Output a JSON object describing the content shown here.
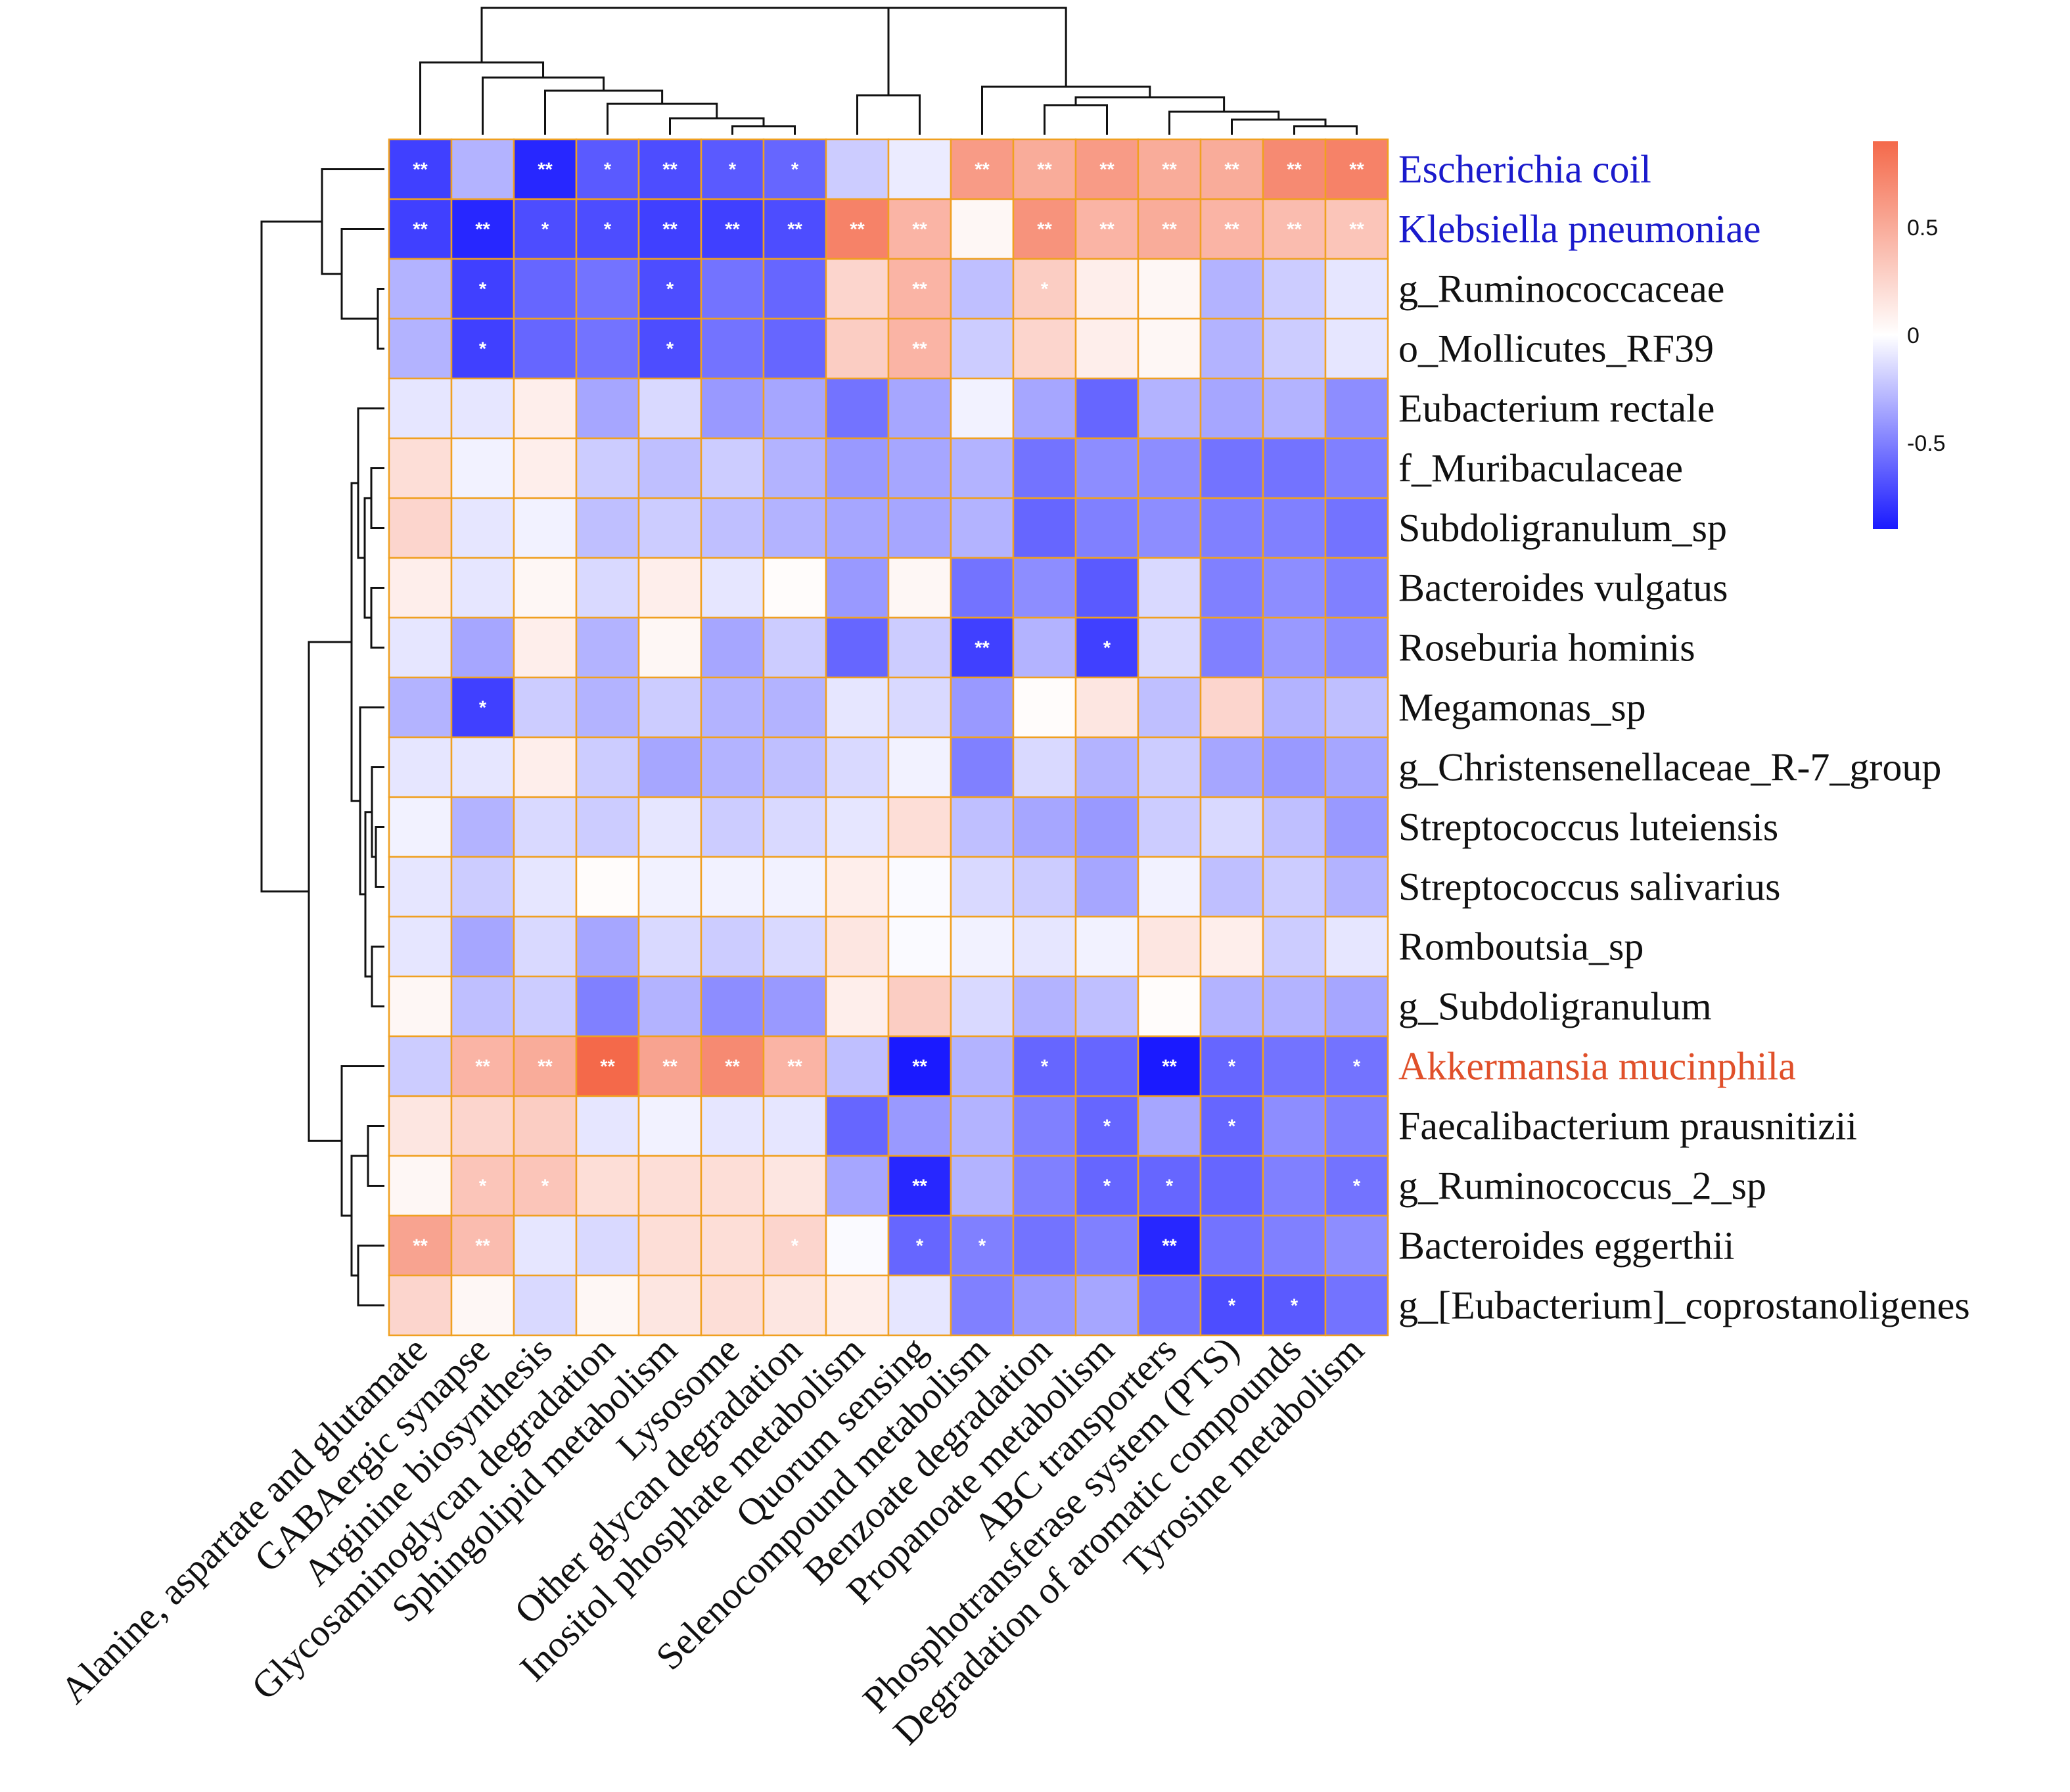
{
  "chart_data": {
    "type": "heatmap",
    "title": "",
    "rows": [
      "Escherichia coil",
      "Klebsiella pneumoniae",
      "g_Ruminococcaceae",
      "o_Mollicutes_RF39",
      "Eubacterium rectale",
      "f_Muribaculaceae",
      "Subdoligranulum_sp",
      "Bacteroides vulgatus",
      "Roseburia hominis",
      "Megamonas_sp",
      "g_Christensenellaceae_R-7_group",
      "Streptococcus luteiensis",
      "Streptococcus salivarius",
      "Romboutsia_sp",
      "g_Subdoligranulum",
      "Akkermansia mucinphila",
      "Faecalibacterium prausnitizii",
      "g_Ruminococcus_2_sp",
      "Bacteroides eggerthii",
      "g_[Eubacterium]_coprostanoligenes"
    ],
    "row_label_colors": [
      "#1a1acc",
      "#1a1acc",
      "#111111",
      "#111111",
      "#111111",
      "#111111",
      "#111111",
      "#111111",
      "#111111",
      "#111111",
      "#111111",
      "#111111",
      "#111111",
      "#111111",
      "#111111",
      "#e0502a",
      "#111111",
      "#111111",
      "#111111",
      "#111111"
    ],
    "columns": [
      "Alanine, aspartate and glutamate",
      "GABAergic synapse",
      "Arginine biosynthesis",
      "Glycosaminoglycan degradation",
      "Sphingolipid metabolism",
      "Lysosome",
      "Other glycan degradation",
      "Inositol phosphate metabolism",
      "Quorum sensing",
      "Selenocompound metabolism",
      "Benzoate degradation",
      "Propanoate metabolism",
      "ABC transporters",
      "Phosphotransferase system (PTS)",
      "Degradation of aromatic compounds",
      "Tyrosine metabolism"
    ],
    "values": [
      [
        -0.75,
        -0.3,
        -0.85,
        -0.65,
        -0.7,
        -0.65,
        -0.6,
        -0.2,
        -0.08,
        0.6,
        0.5,
        0.6,
        0.5,
        0.5,
        0.7,
        0.75
      ],
      [
        -0.75,
        -0.85,
        -0.7,
        -0.7,
        -0.75,
        -0.75,
        -0.7,
        0.75,
        0.45,
        0.05,
        0.65,
        0.45,
        0.5,
        0.45,
        0.4,
        0.35
      ],
      [
        -0.3,
        -0.75,
        -0.6,
        -0.55,
        -0.7,
        -0.55,
        -0.6,
        0.25,
        0.45,
        -0.25,
        0.3,
        0.1,
        0.05,
        -0.3,
        -0.2,
        -0.1
      ],
      [
        -0.3,
        -0.75,
        -0.6,
        -0.55,
        -0.7,
        -0.55,
        -0.6,
        0.3,
        0.45,
        -0.2,
        0.25,
        0.1,
        0.05,
        -0.3,
        -0.2,
        -0.1
      ],
      [
        -0.1,
        -0.1,
        0.1,
        -0.35,
        -0.15,
        -0.4,
        -0.35,
        -0.55,
        -0.35,
        -0.05,
        -0.35,
        -0.6,
        -0.3,
        -0.35,
        -0.3,
        -0.45
      ],
      [
        0.2,
        -0.05,
        0.1,
        -0.2,
        -0.25,
        -0.2,
        -0.3,
        -0.4,
        -0.35,
        -0.3,
        -0.55,
        -0.45,
        -0.45,
        -0.55,
        -0.55,
        -0.5
      ],
      [
        0.25,
        -0.1,
        -0.05,
        -0.25,
        -0.2,
        -0.25,
        -0.3,
        -0.35,
        -0.35,
        -0.3,
        -0.6,
        -0.5,
        -0.45,
        -0.5,
        -0.5,
        -0.55
      ],
      [
        0.1,
        -0.1,
        0.05,
        -0.15,
        0.1,
        -0.1,
        0.02,
        -0.4,
        0.05,
        -0.55,
        -0.45,
        -0.65,
        -0.15,
        -0.5,
        -0.45,
        -0.5
      ],
      [
        -0.1,
        -0.35,
        0.1,
        -0.3,
        0.05,
        -0.35,
        -0.2,
        -0.6,
        -0.2,
        -0.75,
        -0.3,
        -0.75,
        -0.15,
        -0.5,
        -0.4,
        -0.45
      ],
      [
        -0.3,
        -0.75,
        -0.2,
        -0.3,
        -0.2,
        -0.3,
        -0.3,
        -0.1,
        -0.15,
        -0.4,
        0.02,
        0.15,
        -0.25,
        0.25,
        -0.3,
        -0.25
      ],
      [
        -0.1,
        -0.1,
        0.1,
        -0.2,
        -0.35,
        -0.3,
        -0.25,
        -0.15,
        -0.05,
        -0.5,
        -0.15,
        -0.3,
        -0.2,
        -0.35,
        -0.4,
        -0.35
      ],
      [
        -0.05,
        -0.3,
        -0.15,
        -0.2,
        -0.1,
        -0.2,
        -0.15,
        -0.1,
        0.2,
        -0.25,
        -0.35,
        -0.4,
        -0.2,
        -0.15,
        -0.25,
        -0.4
      ],
      [
        -0.1,
        -0.2,
        -0.1,
        0.02,
        -0.05,
        -0.05,
        -0.05,
        0.1,
        -0.02,
        -0.15,
        -0.2,
        -0.35,
        -0.05,
        -0.25,
        -0.2,
        -0.3
      ],
      [
        -0.1,
        -0.35,
        -0.15,
        -0.35,
        -0.15,
        -0.2,
        -0.15,
        0.15,
        -0.02,
        -0.05,
        -0.1,
        -0.05,
        0.15,
        0.1,
        -0.2,
        -0.1
      ],
      [
        0.05,
        -0.25,
        -0.2,
        -0.5,
        -0.3,
        -0.45,
        -0.4,
        0.1,
        0.3,
        -0.15,
        -0.3,
        -0.25,
        0.02,
        -0.3,
        -0.3,
        -0.35
      ],
      [
        -0.2,
        0.45,
        0.5,
        0.9,
        0.55,
        0.7,
        0.45,
        -0.25,
        -0.9,
        -0.3,
        -0.6,
        -0.6,
        -0.9,
        -0.6,
        -0.55,
        -0.55
      ],
      [
        0.15,
        0.25,
        0.3,
        -0.1,
        -0.05,
        -0.1,
        -0.1,
        -0.6,
        -0.4,
        -0.3,
        -0.5,
        -0.6,
        -0.35,
        -0.6,
        -0.45,
        -0.5
      ],
      [
        0.05,
        0.35,
        0.35,
        0.2,
        0.2,
        0.2,
        0.15,
        -0.35,
        -0.85,
        -0.3,
        -0.5,
        -0.6,
        -0.6,
        -0.6,
        -0.5,
        -0.55
      ],
      [
        0.55,
        0.4,
        -0.1,
        -0.15,
        0.2,
        0.2,
        0.25,
        -0.02,
        -0.6,
        -0.5,
        -0.55,
        -0.5,
        -0.85,
        -0.55,
        -0.5,
        -0.45
      ],
      [
        0.25,
        0.05,
        -0.15,
        0.05,
        0.15,
        0.2,
        0.15,
        0.1,
        -0.1,
        -0.5,
        -0.4,
        -0.35,
        -0.55,
        -0.7,
        -0.65,
        -0.55
      ]
    ],
    "significance": [
      [
        "**",
        "",
        "**",
        "*",
        "**",
        "*",
        "*",
        "",
        "",
        "**",
        "**",
        "**",
        "**",
        "**",
        "**",
        "**"
      ],
      [
        "**",
        "**",
        "*",
        "*",
        "**",
        "**",
        "**",
        "**",
        "**",
        "",
        "**",
        "**",
        "**",
        "**",
        "**",
        "**"
      ],
      [
        "",
        "*",
        "",
        "",
        "*",
        "",
        "",
        "",
        "**",
        "",
        "*",
        "",
        "",
        "",
        "",
        ""
      ],
      [
        "",
        "*",
        "",
        "",
        "*",
        "",
        "",
        "",
        "**",
        "",
        "",
        "",
        "",
        "",
        "",
        ""
      ],
      [
        "",
        "",
        "",
        "",
        "",
        "",
        "",
        "",
        "",
        "",
        "",
        "",
        "",
        "",
        "",
        ""
      ],
      [
        "",
        "",
        "",
        "",
        "",
        "",
        "",
        "",
        "",
        "",
        "",
        "",
        "",
        "",
        "",
        ""
      ],
      [
        "",
        "",
        "",
        "",
        "",
        "",
        "",
        "",
        "",
        "",
        "",
        "",
        "",
        "",
        "",
        ""
      ],
      [
        "",
        "",
        "",
        "",
        "",
        "",
        "",
        "",
        "",
        "",
        "",
        "",
        "",
        "",
        "",
        ""
      ],
      [
        "",
        "",
        "",
        "",
        "",
        "",
        "",
        "",
        "",
        "**",
        "",
        "*",
        "",
        "",
        "",
        ""
      ],
      [
        "",
        "*",
        "",
        "",
        "",
        "",
        "",
        "",
        "",
        "",
        "",
        "",
        "",
        "",
        "",
        ""
      ],
      [
        "",
        "",
        "",
        "",
        "",
        "",
        "",
        "",
        "",
        "",
        "",
        "",
        "",
        "",
        "",
        ""
      ],
      [
        "",
        "",
        "",
        "",
        "",
        "",
        "",
        "",
        "",
        "",
        "",
        "",
        "",
        "",
        "",
        ""
      ],
      [
        "",
        "",
        "",
        "",
        "",
        "",
        "",
        "",
        "",
        "",
        "",
        "",
        "",
        "",
        "",
        ""
      ],
      [
        "",
        "",
        "",
        "",
        "",
        "",
        "",
        "",
        "",
        "",
        "",
        "",
        "",
        "",
        "",
        ""
      ],
      [
        "",
        "",
        "",
        "",
        "",
        "",
        "",
        "",
        "",
        "",
        "",
        "",
        "",
        "",
        "",
        ""
      ],
      [
        "",
        "**",
        "**",
        "**",
        "**",
        "**",
        "**",
        "",
        "**",
        "",
        "*",
        "",
        "**",
        "*",
        "",
        "*"
      ],
      [
        "",
        "",
        "",
        "",
        "",
        "",
        "",
        "",
        "",
        "",
        "",
        "*",
        "",
        "*",
        "",
        ""
      ],
      [
        "",
        "*",
        "*",
        "",
        "",
        "",
        "",
        "",
        "**",
        "",
        "",
        "*",
        "*",
        "",
        "",
        "*"
      ],
      [
        "**",
        "**",
        "",
        "",
        "",
        "",
        "*",
        "",
        "*",
        "*",
        "",
        "",
        "**",
        "",
        "",
        ""
      ],
      [
        "",
        "",
        "",
        "",
        "",
        "",
        "",
        "",
        "",
        "",
        "",
        "",
        "",
        "*",
        "*",
        ""
      ]
    ],
    "colorbar": {
      "ticks": [
        0.5,
        0,
        -0.5
      ],
      "tick_labels": [
        "0.5",
        "0",
        "-0.5"
      ],
      "range": [
        -0.9,
        0.9
      ],
      "low_color": "#1a1aff",
      "mid_color": "#ffffff",
      "high_color": "#f4694a"
    },
    "row_dendrogram_order": [
      0,
      1,
      2,
      3,
      4,
      5,
      6,
      7,
      8,
      9,
      10,
      11,
      12,
      13,
      14,
      15,
      16,
      17,
      18,
      19
    ],
    "col_dendrogram_order": [
      0,
      1,
      2,
      3,
      4,
      5,
      6,
      7,
      8,
      9,
      10,
      11,
      12,
      13,
      14,
      15
    ]
  }
}
